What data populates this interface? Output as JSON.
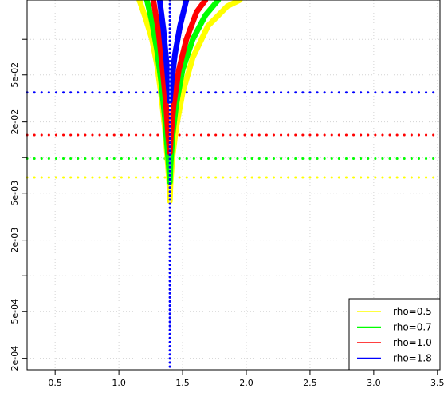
{
  "chart_data": {
    "type": "line",
    "title": "",
    "xlabel": "",
    "ylabel": "",
    "x_scale": "linear",
    "y_scale": "log",
    "xlim": [
      0.28,
      3.52
    ],
    "ylim": [
      0.00016,
      0.215
    ],
    "grid": true,
    "x_ticks": [
      {
        "value": 0.5,
        "label": "0.5"
      },
      {
        "value": 1.0,
        "label": "1.0"
      },
      {
        "value": 1.5,
        "label": "1.5"
      },
      {
        "value": 2.0,
        "label": "2.0"
      },
      {
        "value": 2.5,
        "label": "2.5"
      },
      {
        "value": 3.0,
        "label": "3.0"
      },
      {
        "value": 3.5,
        "label": "3.5"
      }
    ],
    "y_ticks": [
      {
        "value": 0.0002,
        "label": "2e-04"
      },
      {
        "value": 0.0005,
        "label": "5e-04"
      },
      {
        "value": 0.002,
        "label": "2e-03"
      },
      {
        "value": 0.005,
        "label": "5e-03"
      },
      {
        "value": 0.02,
        "label": "2e-02"
      },
      {
        "value": 0.05,
        "label": "5e-02"
      }
    ],
    "y_minor_ticks": [
      0.001,
      0.01,
      0.1
    ],
    "vertical_reference": {
      "x": 1.4,
      "color": "#0000ff",
      "style": "dotted"
    },
    "legend": {
      "position": "bottom-right",
      "entries": [
        {
          "label": "rho=0.5",
          "color": "#ffff00"
        },
        {
          "label": "rho=0.7",
          "color": "#00ff00"
        },
        {
          "label": "rho=1.0",
          "color": "#ff0000"
        },
        {
          "label": "rho=1.8",
          "color": "#0000ff"
        }
      ]
    },
    "series": [
      {
        "name": "rho=0.5",
        "color": "#ffff00",
        "threshold": 0.0068,
        "x_left": [
          1.16,
          1.21,
          1.26,
          1.3,
          1.33,
          1.36,
          1.38,
          1.395,
          1.4
        ],
        "y_left": [
          0.215,
          0.15,
          0.1,
          0.06,
          0.035,
          0.018,
          0.01,
          0.006,
          0.0043
        ],
        "x_right": [
          1.4,
          1.405,
          1.42,
          1.45,
          1.5,
          1.58,
          1.7,
          1.85,
          1.95
        ],
        "y_right": [
          0.0043,
          0.006,
          0.01,
          0.018,
          0.035,
          0.07,
          0.13,
          0.19,
          0.215
        ]
      },
      {
        "name": "rho=0.7",
        "color": "#00ff00",
        "threshold": 0.0098,
        "x_left": [
          1.22,
          1.26,
          1.3,
          1.33,
          1.36,
          1.38,
          1.395,
          1.4
        ],
        "y_left": [
          0.215,
          0.14,
          0.08,
          0.045,
          0.022,
          0.012,
          0.0075,
          0.0062
        ],
        "x_right": [
          1.4,
          1.405,
          1.42,
          1.45,
          1.5,
          1.58,
          1.68,
          1.78
        ],
        "y_right": [
          0.0062,
          0.0085,
          0.015,
          0.028,
          0.055,
          0.1,
          0.16,
          0.215
        ]
      },
      {
        "name": "rho=1.0",
        "color": "#ff0000",
        "threshold": 0.0155,
        "x_left": [
          1.27,
          1.31,
          1.34,
          1.37,
          1.385,
          1.4
        ],
        "y_left": [
          0.215,
          0.12,
          0.06,
          0.028,
          0.016,
          0.011
        ],
        "x_right": [
          1.4,
          1.41,
          1.43,
          1.47,
          1.53,
          1.61,
          1.68
        ],
        "y_right": [
          0.011,
          0.016,
          0.028,
          0.055,
          0.1,
          0.17,
          0.215
        ]
      },
      {
        "name": "rho=1.8",
        "color": "#0000ff",
        "threshold": 0.0355,
        "x_left": [
          1.32,
          1.35,
          1.37,
          1.385,
          1.4
        ],
        "y_left": [
          0.215,
          0.12,
          0.07,
          0.045,
          0.03
        ],
        "x_right": [
          1.4,
          1.415,
          1.44,
          1.48,
          1.53
        ],
        "y_right": [
          0.03,
          0.045,
          0.075,
          0.13,
          0.215
        ]
      }
    ]
  }
}
